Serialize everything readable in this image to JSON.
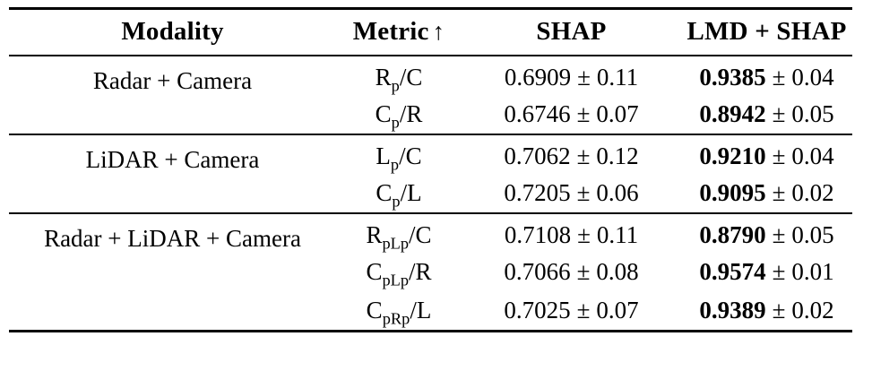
{
  "table": {
    "columns": [
      {
        "label": "Modality"
      },
      {
        "label": "Metric",
        "arrow": "↑"
      },
      {
        "label": "SHAP"
      },
      {
        "label": "LMD + SHAP"
      }
    ],
    "plus_minus": "±",
    "groups": [
      {
        "modality": "Radar + Camera",
        "rows": [
          {
            "metric": "R_p/C",
            "values": [
              {
                "mean": "0.6909",
                "std": "0.11",
                "bold": false
              },
              {
                "mean": "0.9385",
                "std": "0.04",
                "bold": true
              }
            ]
          },
          {
            "metric": "C_p/R",
            "values": [
              {
                "mean": "0.6746",
                "std": "0.07",
                "bold": false
              },
              {
                "mean": "0.8942",
                "std": "0.05",
                "bold": true
              }
            ]
          }
        ]
      },
      {
        "modality": "LiDAR + Camera",
        "rows": [
          {
            "metric": "L_p/C",
            "values": [
              {
                "mean": "0.7062",
                "std": "0.12",
                "bold": false
              },
              {
                "mean": "0.9210",
                "std": "0.04",
                "bold": true
              }
            ]
          },
          {
            "metric": "C_p/L",
            "values": [
              {
                "mean": "0.7205",
                "std": "0.06",
                "bold": false
              },
              {
                "mean": "0.9095",
                "std": "0.02",
                "bold": true
              }
            ]
          }
        ]
      },
      {
        "modality": "Radar + LiDAR + Camera",
        "rows": [
          {
            "metric": "R_pL_p/C",
            "values": [
              {
                "mean": "0.7108",
                "std": "0.11",
                "bold": false
              },
              {
                "mean": "0.8790",
                "std": "0.05",
                "bold": true
              }
            ]
          },
          {
            "metric": "C_pL_p/R",
            "values": [
              {
                "mean": "0.7066",
                "std": "0.08",
                "bold": false
              },
              {
                "mean": "0.9574",
                "std": "0.01",
                "bold": true
              }
            ]
          },
          {
            "metric": "C_pR_p/L",
            "values": [
              {
                "mean": "0.7025",
                "std": "0.07",
                "bold": false
              },
              {
                "mean": "0.9389",
                "std": "0.02",
                "bold": true
              }
            ]
          }
        ]
      }
    ]
  }
}
